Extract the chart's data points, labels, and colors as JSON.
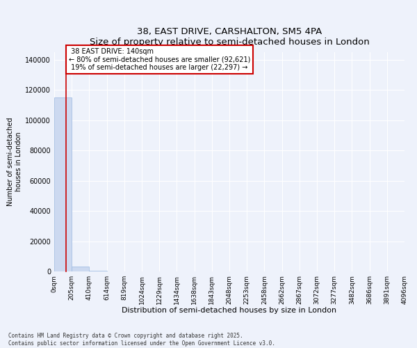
{
  "title": "38, EAST DRIVE, CARSHALTON, SM5 4PA",
  "subtitle": "Size of property relative to semi-detached houses in London",
  "xlabel": "Distribution of semi-detached houses by size in London",
  "ylabel": "Number of semi-detached\nhouses in London",
  "property_size": 140,
  "property_label": "38 EAST DRIVE: 140sqm",
  "pct_smaller": 80,
  "count_smaller": 92621,
  "pct_larger": 19,
  "count_larger": 22297,
  "bar_color": "#ccd9f0",
  "bar_edge_color": "#99b8e0",
  "line_color": "#cc0000",
  "annotation_box_color": "#cc0000",
  "background_color": "#eef2fb",
  "grid_color": "#ffffff",
  "bin_edges": [
    0,
    205,
    410,
    614,
    819,
    1024,
    1229,
    1434,
    1638,
    1843,
    2048,
    2253,
    2458,
    2662,
    2867,
    3072,
    3277,
    3482,
    3686,
    3891,
    4096
  ],
  "bin_counts": [
    115000,
    3200,
    400,
    100,
    50,
    20,
    10,
    8,
    5,
    4,
    3,
    3,
    2,
    2,
    2,
    1,
    1,
    1,
    1,
    1
  ],
  "ylim": [
    0,
    145000
  ],
  "yticks": [
    0,
    20000,
    40000,
    60000,
    80000,
    100000,
    120000,
    140000
  ],
  "tick_labels": [
    "0sqm",
    "205sqm",
    "410sqm",
    "614sqm",
    "819sqm",
    "1024sqm",
    "1229sqm",
    "1434sqm",
    "1638sqm",
    "1843sqm",
    "2048sqm",
    "2253sqm",
    "2458sqm",
    "2662sqm",
    "2867sqm",
    "3072sqm",
    "3277sqm",
    "3482sqm",
    "3686sqm",
    "3891sqm",
    "4096sqm"
  ],
  "footer": "Contains HM Land Registry data © Crown copyright and database right 2025.\nContains public sector information licensed under the Open Government Licence v3.0.",
  "fig_width": 6.0,
  "fig_height": 5.0,
  "dpi": 100
}
